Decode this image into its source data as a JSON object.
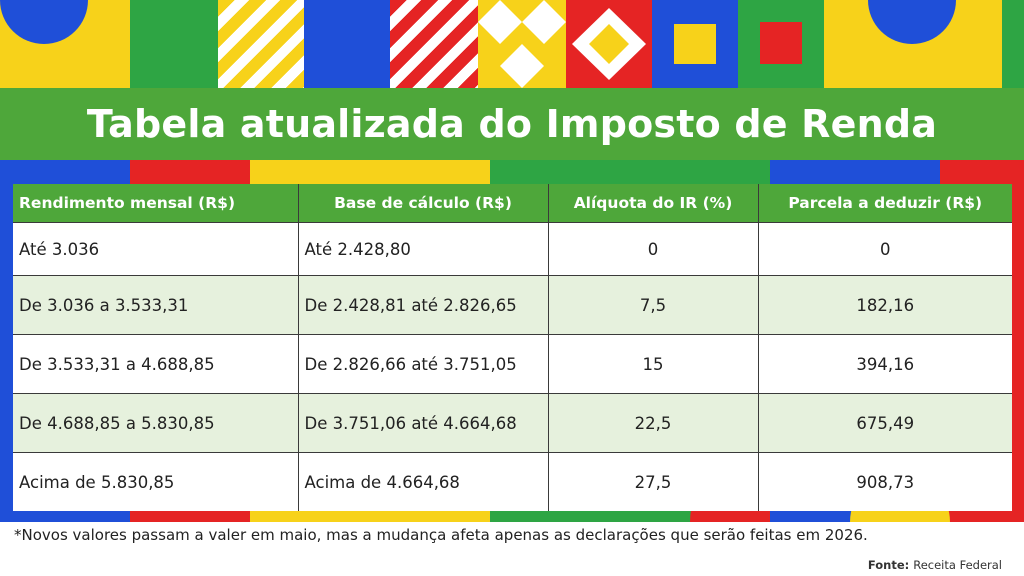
{
  "title": "Tabela atualizada do Imposto de Renda",
  "table": {
    "headers": [
      "Rendimento mensal (R$)",
      "Base de cálculo (R$)",
      "Alíquota do IR (%)",
      "Parcela a deduzir (R$)"
    ],
    "rows": [
      [
        "Até 3.036",
        "Até 2.428,80",
        "0",
        "0"
      ],
      [
        "De 3.036 a 3.533,31",
        "De 2.428,81 até 2.826,65",
        "7,5",
        "182,16"
      ],
      [
        "De 3.533,31 a 4.688,85",
        "De 2.826,66 até 3.751,05",
        "15",
        "394,16"
      ],
      [
        "De 4.688,85 a 5.830,85",
        "De 3.751,06 até 4.664,68",
        "22,5",
        "675,49"
      ],
      [
        "Acima de 5.830,85",
        "Acima de 4.664,68",
        "27,5",
        "908,73"
      ]
    ]
  },
  "footnote": "*Novos valores passam a valer em maio, mas a mudança afeta apenas as declarações que serão feitas em 2026.",
  "source": {
    "label": "Fonte:",
    "value": "Receita Federal"
  },
  "colors": {
    "green": "#4ea73a",
    "yellow": "#f7d21a",
    "blue": "#1f4fd8",
    "red": "#e52424",
    "row_alt": "#e6f1dd"
  }
}
